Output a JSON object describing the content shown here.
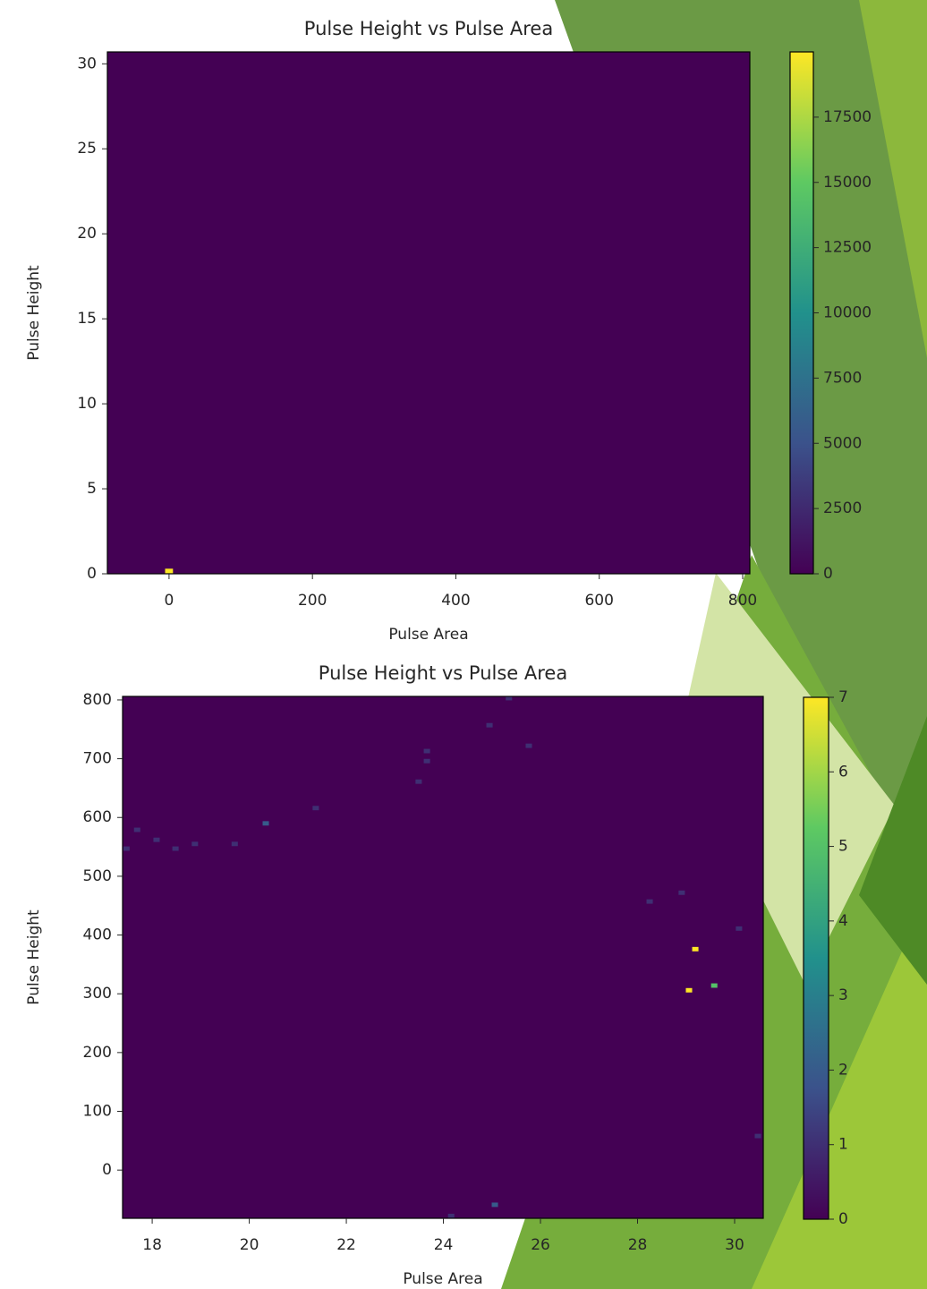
{
  "chart_data": [
    {
      "type": "heatmap",
      "title": "Pulse Height vs Pulse Area",
      "xlabel": "Pulse Area",
      "ylabel": "Pulse Height",
      "xlim": [
        -86,
        810
      ],
      "ylim": [
        0,
        30.7
      ],
      "xticks": [
        0,
        200,
        400,
        600,
        800
      ],
      "yticks": [
        0,
        5,
        10,
        15,
        20,
        25,
        30
      ],
      "x": [
        0
      ],
      "y": [
        0.15
      ],
      "values": [
        20000
      ],
      "bin_size": [
        11,
        0.3
      ],
      "colormap": "viridis",
      "colorbar_lim": [
        0,
        20000
      ],
      "colorbar_ticks": [
        0,
        2500,
        5000,
        7500,
        10000,
        12500,
        15000,
        17500
      ]
    },
    {
      "type": "heatmap",
      "title": "Pulse Height vs Pulse Area",
      "xlabel": "Pulse Area",
      "ylabel": "Pulse Height",
      "xlim": [
        17.39,
        30.59
      ],
      "ylim": [
        -82,
        806
      ],
      "xticks": [
        18,
        20,
        22,
        24,
        26,
        28,
        30
      ],
      "yticks": [
        0,
        100,
        200,
        300,
        400,
        500,
        600,
        700,
        800
      ],
      "x": [
        17.47,
        17.69,
        18.09,
        18.48,
        18.88,
        19.7,
        20.34,
        21.37,
        23.49,
        23.66,
        23.66,
        24.95,
        25.35,
        25.76,
        28.25,
        28.91,
        30.09,
        29.19,
        29.06,
        29.58,
        30.48,
        25.06,
        24.16
      ],
      "y": [
        547,
        579,
        562,
        547,
        555,
        555,
        590,
        616,
        661,
        713,
        696,
        757,
        803,
        722,
        457,
        472,
        411,
        376,
        306,
        314,
        58,
        -59,
        -78
      ],
      "values": [
        1,
        1,
        1,
        1,
        1,
        1,
        2,
        1,
        1,
        1,
        1,
        1,
        1,
        1,
        1,
        1,
        1,
        7,
        7,
        5,
        1,
        2,
        1
      ],
      "bin_size": [
        0.13,
        7.5
      ],
      "colormap": "viridis",
      "colorbar_lim": [
        0,
        7
      ],
      "colorbar_ticks": [
        0,
        1,
        2,
        3,
        4,
        5,
        6,
        7
      ]
    }
  ]
}
